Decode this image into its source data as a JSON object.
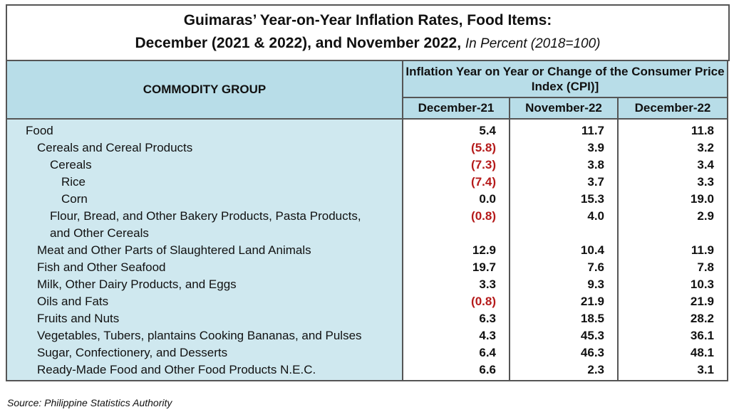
{
  "title": {
    "line1": "Guimaras’ Year-on-Year Inflation Rates, Food Items:",
    "line2": "December (2021 & 2022), and November 2022,",
    "unit": "In Percent (2018=100)"
  },
  "table": {
    "commodity_header": "COMMODITY GROUP",
    "group_header": "Inflation Year on Year or Change of the Consumer Price Index (CPI)]",
    "columns": [
      "December-21",
      "November-22",
      "December-22"
    ]
  },
  "chart_data": {
    "type": "table",
    "columns": [
      "December-21",
      "November-22",
      "December-22"
    ],
    "rows": [
      {
        "label": "Food",
        "level": 0,
        "values": [
          "5.4",
          "11.7",
          "11.8"
        ]
      },
      {
        "label": "Cereals and Cereal Products",
        "level": 1,
        "values": [
          "(5.8)",
          "3.9",
          "3.2"
        ]
      },
      {
        "label": "Cereals",
        "level": 2,
        "values": [
          "(7.3)",
          "3.8",
          "3.4"
        ]
      },
      {
        "label": "Rice",
        "level": 3,
        "values": [
          "(7.4)",
          "3.7",
          "3.3"
        ]
      },
      {
        "label": "Corn",
        "level": 3,
        "values": [
          "0.0",
          "15.3",
          "19.0"
        ]
      },
      {
        "label": "Flour, Bread, and Other Bakery Products, Pasta Products, and Other Cereals",
        "level": 2,
        "values": [
          "(0.8)",
          "4.0",
          "2.9"
        ]
      },
      {
        "label": "Meat and Other Parts of Slaughtered Land Animals",
        "level": 1,
        "values": [
          "12.9",
          "10.4",
          "11.9"
        ]
      },
      {
        "label": "Fish and Other Seafood",
        "level": 1,
        "values": [
          "19.7",
          "7.6",
          "7.8"
        ]
      },
      {
        "label": "Milk, Other Dairy Products, and Eggs",
        "level": 1,
        "values": [
          "3.3",
          "9.3",
          "10.3"
        ]
      },
      {
        "label": "Oils and Fats",
        "level": 1,
        "values": [
          "(0.8)",
          "21.9",
          "21.9"
        ]
      },
      {
        "label": "Fruits and Nuts",
        "level": 1,
        "values": [
          "6.3",
          "18.5",
          "28.2"
        ]
      },
      {
        "label": "Vegetables, Tubers, plantains Cooking Bananas, and Pulses",
        "level": 1,
        "values": [
          "4.3",
          "45.3",
          "36.1"
        ]
      },
      {
        "label": "Sugar, Confectionery, and Desserts",
        "level": 1,
        "values": [
          "6.4",
          "46.3",
          "48.1"
        ]
      },
      {
        "label": "Ready-Made Food and Other Food Products N.E.C.",
        "level": 1,
        "values": [
          "6.6",
          "2.3",
          "3.1"
        ]
      }
    ]
  },
  "colors": {
    "header_bg": "#b8dde8",
    "label_bg": "#cfe8ef",
    "negative": "#b51a1a"
  },
  "source": "Source: Philippine Statistics Authority"
}
